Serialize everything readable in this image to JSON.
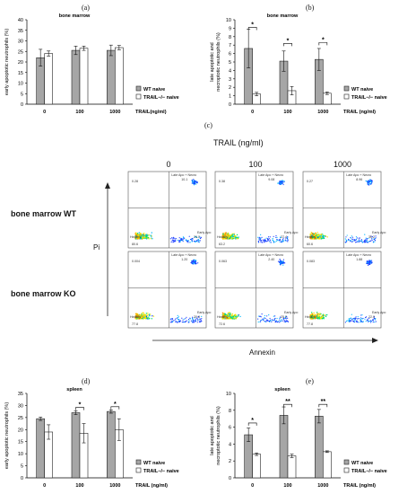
{
  "panels": {
    "a": "(a)",
    "b": "(b)",
    "c": "(c)",
    "d": "(d)",
    "e": "(e)"
  },
  "flow": {
    "header": "TRAIL (ng/ml)",
    "concentrations": [
      "0",
      "100",
      "1000"
    ],
    "rows": [
      "bone marrow WT",
      "bone marrow KO"
    ],
    "y_axis": "Pi",
    "x_axis": "Annexin",
    "quadrant_labels": {
      "top_right": "Late Apo + Necro",
      "bottom_right": "Early Apo",
      "bottom_left": "Healthy"
    },
    "plots": [
      [
        {
          "q1": "0.28",
          "q2": "10.1",
          "q3": "80.6",
          "q4": "29.0"
        },
        {
          "q1": "0.38",
          "q2": "9.08",
          "q3": "63.2",
          "q4": "27.4"
        },
        {
          "q1": "0.27",
          "q2": "8.96",
          "q3": "60.6",
          "q4": "30.2"
        }
      ],
      [
        {
          "q1": "0.004",
          "q2": "1.20",
          "q3": "77.8",
          "q4": "20.9"
        },
        {
          "q1": "0.063",
          "q2": "2.40",
          "q3": "72.6",
          "q4": "25.2"
        },
        {
          "q1": "0.083",
          "q2": "1.88",
          "q3": "77.8",
          "q4": "22.0"
        }
      ]
    ]
  },
  "chart_data": [
    {
      "id": "a",
      "type": "bar",
      "title": "bone marrow",
      "categories": [
        "0",
        "100",
        "1000"
      ],
      "xlabel": "TRAIL(ng/ml)",
      "ylabel": "early apoptotic neutrophils (%)",
      "ylim": [
        0,
        40
      ],
      "yticks": [
        "0",
        "5",
        "10",
        "15",
        "20",
        "25",
        "30",
        "35",
        "40"
      ],
      "series": [
        {
          "name": "WT naive",
          "color": "#a6a6a6",
          "values": [
            22,
            25.5,
            25.5
          ],
          "errors": [
            4,
            2,
            2.5
          ]
        },
        {
          "name": "TRAIL−/− naive",
          "color": "#ffffff",
          "values": [
            24,
            26.5,
            26.8
          ],
          "errors": [
            1.2,
            1,
            1
          ]
        }
      ],
      "significance": [],
      "legend": "right"
    },
    {
      "id": "b",
      "type": "bar",
      "title": "bone marrow",
      "categories": [
        "0",
        "100",
        "1000"
      ],
      "xlabel": "TRAIL (ng/ml)",
      "ylabel": "late apoptotic and necroptotic neutrophils (%)",
      "ylim": [
        0,
        10
      ],
      "yticks": [
        "0",
        "1",
        "2",
        "3",
        "4",
        "5",
        "6",
        "7",
        "8",
        "9",
        "10"
      ],
      "series": [
        {
          "name": "WT naive",
          "color": "#a6a6a6",
          "values": [
            6.6,
            5.1,
            5.3
          ],
          "errors": [
            2.3,
            1.2,
            1.3
          ]
        },
        {
          "name": "TRAIL−/− naive",
          "color": "#ffffff",
          "values": [
            1.2,
            1.6,
            1.3
          ],
          "errors": [
            0.2,
            0.5,
            0.15
          ]
        }
      ],
      "significance": [
        {
          "category": 0,
          "label": "*",
          "y": 9.1
        },
        {
          "category": 1,
          "label": "*",
          "y": 7.2
        },
        {
          "category": 2,
          "label": "*",
          "y": 7.3
        }
      ],
      "legend": "right"
    },
    {
      "id": "d",
      "type": "bar",
      "title": "spleen",
      "categories": [
        "0",
        "100",
        "1000"
      ],
      "xlabel": "TRAIL (ng/ml)",
      "ylabel": "early apoptotic neutrophils (%)",
      "ylim": [
        0,
        35
      ],
      "yticks": [
        "0",
        "5",
        "10",
        "15",
        "20",
        "25",
        "30",
        "35"
      ],
      "series": [
        {
          "name": "WT naive",
          "color": "#a6a6a6",
          "values": [
            24.5,
            27,
            27.5
          ],
          "errors": [
            0.7,
            0.8,
            0.7
          ]
        },
        {
          "name": "TRAIL−/− naive",
          "color": "#ffffff",
          "values": [
            19,
            18.5,
            20
          ],
          "errors": [
            3,
            4,
            4.5
          ]
        }
      ],
      "significance": [
        {
          "category": 1,
          "label": "*",
          "y": 29.2
        },
        {
          "category": 2,
          "label": "*",
          "y": 29.5
        }
      ],
      "legend": "right"
    },
    {
      "id": "e",
      "type": "bar",
      "title": "spleen",
      "categories": [
        "0",
        "100",
        "1000"
      ],
      "xlabel": "TRAIL (ng/ml)",
      "ylabel": "late apoptotic and necroptotic neutrophils (%)",
      "ylim": [
        0,
        10
      ],
      "yticks": [
        "0",
        "2",
        "4",
        "6",
        "8",
        "10"
      ],
      "series": [
        {
          "name": "WT naive",
          "color": "#a6a6a6",
          "values": [
            5.1,
            7.4,
            7.3
          ],
          "errors": [
            0.8,
            1.0,
            0.8
          ]
        },
        {
          "name": "TRAIL−/− naive",
          "color": "#ffffff",
          "values": [
            2.8,
            2.6,
            3.1
          ],
          "errors": [
            0.15,
            0.2,
            0.1
          ]
        }
      ],
      "significance": [
        {
          "category": 0,
          "label": "*",
          "y": 6.5
        },
        {
          "category": 1,
          "label": "**",
          "y": 8.7
        },
        {
          "category": 2,
          "label": "**",
          "y": 8.7
        }
      ],
      "legend": "right"
    }
  ]
}
